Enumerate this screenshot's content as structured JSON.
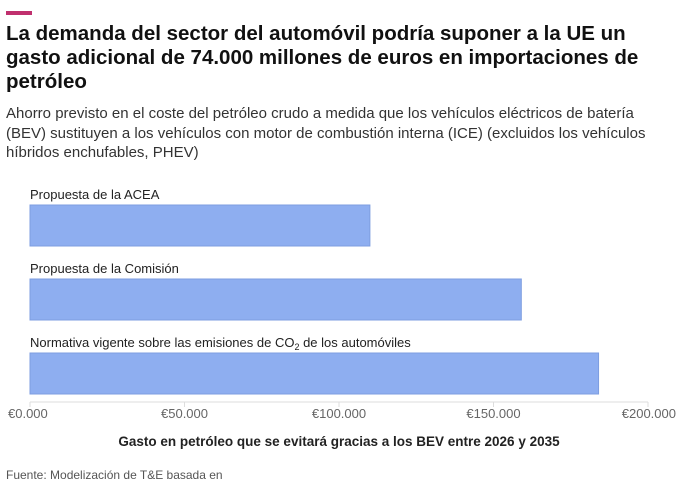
{
  "header": {
    "title": "La demanda del sector del automóvil podría suponer a la UE un gasto adicional de 74.000 millones de euros en importaciones de petróleo",
    "subtitle": "Ahorro previsto en el coste del petróleo crudo a medida que los vehículos eléctricos de batería (BEV) sustituyen a los vehículos con motor de combustión interna (ICE) (excluidos los vehículos híbridos enchufables, PHEV)",
    "accent_color": "#c0306e"
  },
  "chart_data": {
    "type": "bar",
    "orientation": "horizontal",
    "categories": [
      "Propuesta de la ACEA",
      "Propuesta de la Comisión",
      "Normativa vigente sobre las emisiones de CO₂ de los automóviles"
    ],
    "values": [
      110000,
      159000,
      184000
    ],
    "xlabel": "Gasto en petróleo que se evitará gracias a los BEV entre 2026 y 2035",
    "xlim": [
      0,
      200000
    ],
    "ticks": [
      0,
      50000,
      100000,
      150000,
      200000
    ],
    "tick_labels": [
      "€0.000",
      "€50.000",
      "€100.000",
      "€150.000",
      "€200.000"
    ],
    "bar_color": "#8eaef0",
    "grid": false
  },
  "footer": {
    "source": "Fuente: Modelización de T&E basada en"
  }
}
